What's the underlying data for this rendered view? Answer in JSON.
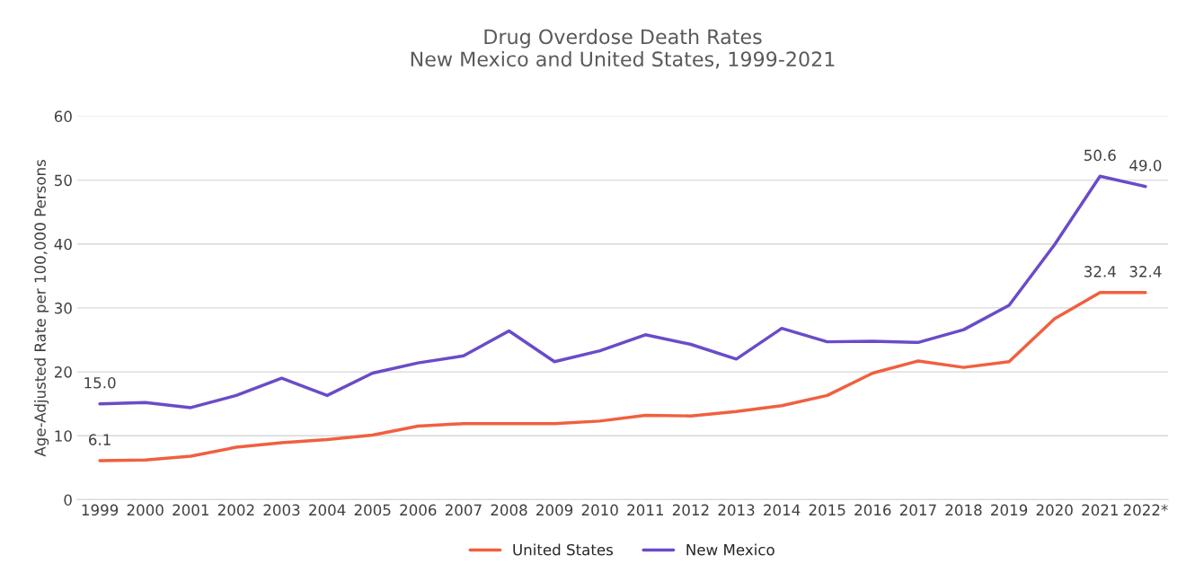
{
  "chart_data": {
    "type": "line",
    "title": "Drug Overdose Death Rates\nNew Mexico and United States, 1999-2021",
    "ylabel": "Age-Adjusted Rate per 100,000 Persons",
    "categories": [
      "1999",
      "2000",
      "2001",
      "2002",
      "2003",
      "2004",
      "2005",
      "2006",
      "2007",
      "2008",
      "2009",
      "2010",
      "2011",
      "2012",
      "2013",
      "2014",
      "2015",
      "2016",
      "2017",
      "2018",
      "2019",
      "2020",
      "2021",
      "2022*"
    ],
    "series": [
      {
        "name": "United States",
        "color": "#f0603f",
        "values": [
          6.1,
          6.2,
          6.8,
          8.2,
          8.9,
          9.4,
          10.1,
          11.5,
          11.9,
          11.9,
          11.9,
          12.3,
          13.2,
          13.1,
          13.8,
          14.7,
          16.3,
          19.8,
          21.7,
          20.7,
          21.6,
          28.3,
          32.4,
          32.4
        ],
        "value_labels": [
          "6.1",
          null,
          null,
          null,
          null,
          null,
          null,
          null,
          null,
          null,
          null,
          null,
          null,
          null,
          null,
          null,
          null,
          null,
          null,
          null,
          null,
          null,
          "32.4",
          "32.4"
        ]
      },
      {
        "name": "New Mexico",
        "color": "#6a4bc9",
        "values": [
          15.0,
          15.2,
          14.4,
          16.3,
          19.0,
          16.3,
          19.8,
          21.4,
          22.5,
          26.4,
          21.6,
          23.3,
          25.8,
          24.3,
          22.0,
          26.8,
          24.7,
          24.8,
          24.6,
          26.6,
          30.4,
          39.9,
          50.6,
          49.0
        ],
        "value_labels": [
          "15.0",
          null,
          null,
          null,
          null,
          null,
          null,
          null,
          null,
          null,
          null,
          null,
          null,
          null,
          null,
          null,
          null,
          null,
          null,
          null,
          null,
          null,
          "50.6",
          "49.0"
        ]
      }
    ],
    "ylim": [
      0,
      60
    ],
    "yticks": [
      0,
      10,
      20,
      30,
      40,
      50,
      60
    ],
    "grid": "y",
    "legend": "bottom",
    "marker": "none",
    "line_style": "solid"
  }
}
